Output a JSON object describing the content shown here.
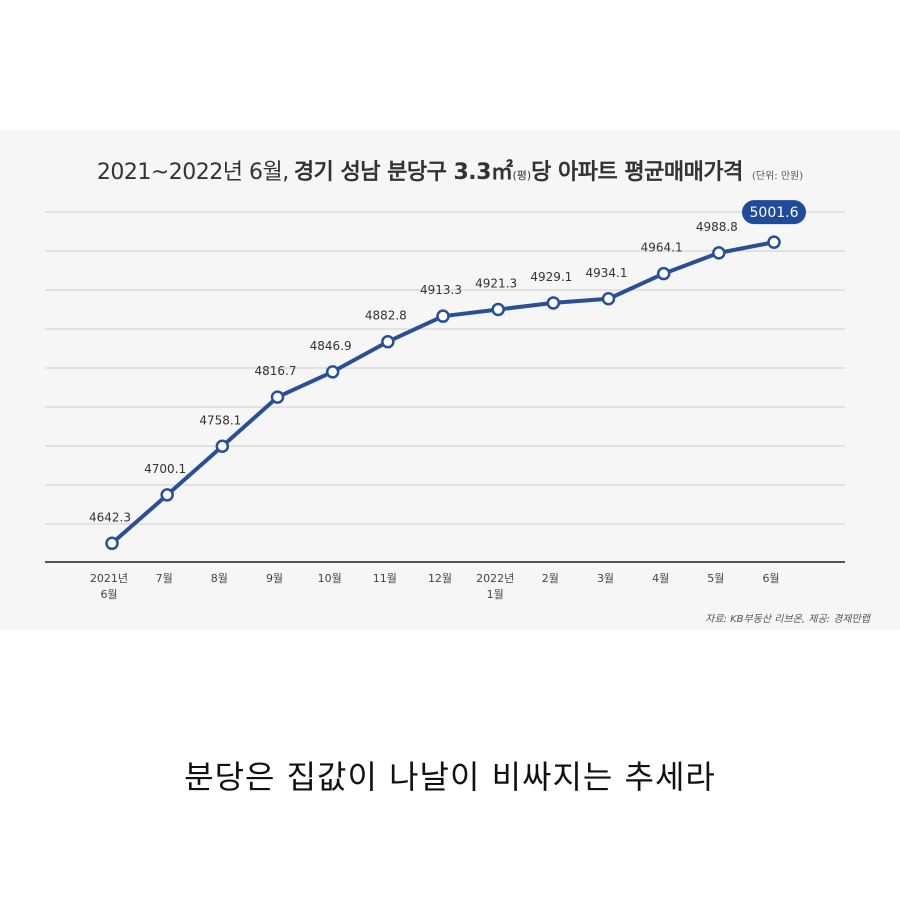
{
  "chart_data": {
    "type": "line",
    "title_prefix": "2021~2022년 6월,",
    "title_main": "경기 성남 분당구 3.3㎡",
    "title_pyeong": "(평)",
    "title_suffix": "당 아파트 평균매매가격",
    "unit_note": "(단위: 만원)",
    "categories": [
      [
        "2021년",
        "6월"
      ],
      [
        "7월"
      ],
      [
        "8월"
      ],
      [
        "9월"
      ],
      [
        "10월"
      ],
      [
        "11월"
      ],
      [
        "12월"
      ],
      [
        "2022년",
        "1월"
      ],
      [
        "2월"
      ],
      [
        "3월"
      ],
      [
        "4월"
      ],
      [
        "5월"
      ],
      [
        "6월"
      ]
    ],
    "values": [
      4642.3,
      4700.1,
      4758.1,
      4816.7,
      4846.9,
      4882.8,
      4913.3,
      4921.3,
      4929.1,
      4934.1,
      4964.1,
      4988.8,
      5001.6
    ],
    "labels": [
      "4642.3",
      "4700.1",
      "4758.1",
      "4816.7",
      "4846.9",
      "4882.8",
      "4913.3",
      "4921.3",
      "4929.1",
      "4934.1",
      "4964.1",
      "4988.8",
      "5001.6"
    ],
    "highlight_label": "5001.6",
    "ylim": [
      4620,
      5040
    ],
    "grid": true,
    "source": "자료: KB부동산 리브온, 제공: 경제만랩",
    "colors": {
      "line": "#2a4f99",
      "highlight_fill": "#1f4b9c",
      "grid": "#cfcfcf",
      "axis": "#555555"
    }
  },
  "caption": "분당은 집값이 나날이 비싸지는 추세라"
}
